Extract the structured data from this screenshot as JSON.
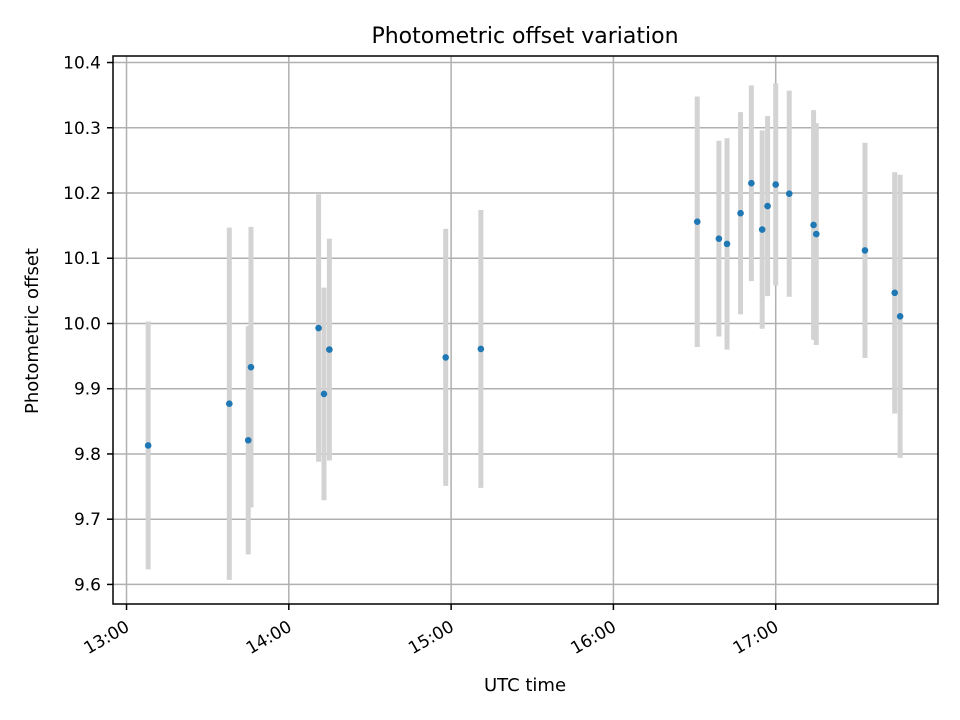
{
  "chart_data": {
    "type": "scatter",
    "title": "Photometric offset variation",
    "xlabel": "UTC time",
    "ylabel": "Photometric offset",
    "x_ticks": [
      "13:00",
      "14:00",
      "15:00",
      "16:00",
      "17:00"
    ],
    "y_ticks": [
      "9.6",
      "9.7",
      "9.8",
      "9.9",
      "10.0",
      "10.1",
      "10.2",
      "10.3",
      "10.4"
    ],
    "xlim": [
      "12:55",
      "18:00"
    ],
    "ylim": [
      9.57,
      10.41
    ],
    "grid": true,
    "colors": {
      "point": "#1f77b4",
      "errorbar": "#d3d3d3"
    },
    "points": [
      {
        "x": "13:08",
        "y": 9.813,
        "yerr": 0.19
      },
      {
        "x": "13:38",
        "y": 9.877,
        "yerr": 0.27
      },
      {
        "x": "13:45",
        "y": 9.821,
        "yerr": 0.175
      },
      {
        "x": "13:46",
        "y": 9.933,
        "yerr": 0.215
      },
      {
        "x": "14:11",
        "y": 9.993,
        "yerr": 0.205
      },
      {
        "x": "14:13",
        "y": 9.892,
        "yerr": 0.163
      },
      {
        "x": "14:15",
        "y": 9.96,
        "yerr": 0.17
      },
      {
        "x": "14:58",
        "y": 9.948,
        "yerr": 0.197
      },
      {
        "x": "15:11",
        "y": 9.961,
        "yerr": 0.213
      },
      {
        "x": "16:31",
        "y": 10.156,
        "yerr": 0.192
      },
      {
        "x": "16:39",
        "y": 10.13,
        "yerr": 0.15
      },
      {
        "x": "16:42",
        "y": 10.122,
        "yerr": 0.162
      },
      {
        "x": "16:47",
        "y": 10.169,
        "yerr": 0.155
      },
      {
        "x": "16:51",
        "y": 10.215,
        "yerr": 0.15
      },
      {
        "x": "16:55",
        "y": 10.144,
        "yerr": 0.152
      },
      {
        "x": "16:57",
        "y": 10.18,
        "yerr": 0.138
      },
      {
        "x": "17:00",
        "y": 10.213,
        "yerr": 0.155
      },
      {
        "x": "17:05",
        "y": 10.199,
        "yerr": 0.158
      },
      {
        "x": "17:14",
        "y": 10.151,
        "yerr": 0.176
      },
      {
        "x": "17:15",
        "y": 10.137,
        "yerr": 0.17
      },
      {
        "x": "17:33",
        "y": 10.112,
        "yerr": 0.165
      },
      {
        "x": "17:44",
        "y": 10.047,
        "yerr": 0.185
      },
      {
        "x": "17:46",
        "y": 10.011,
        "yerr": 0.217
      }
    ]
  }
}
